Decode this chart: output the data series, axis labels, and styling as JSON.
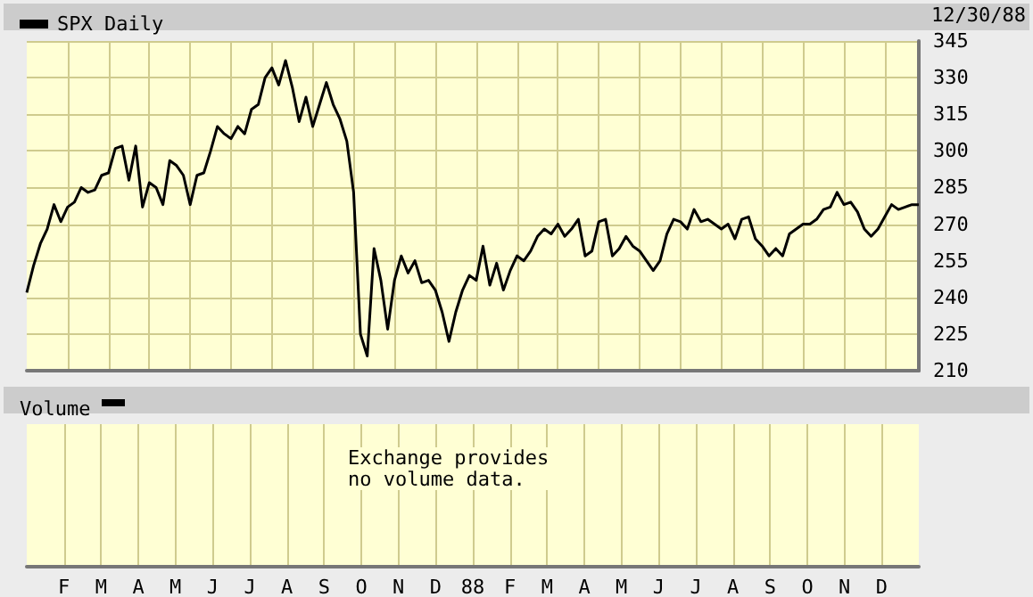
{
  "chart_data": [
    {
      "type": "line",
      "legend": "top left",
      "annotations": [
        "12/30/88"
      ],
      "grid": true,
      "tick_labels": "y",
      "line_style": "solid",
      "series": [
        {
          "name": "SPX Daily",
          "color": "#000000",
          "values": [
            242,
            253,
            262,
            268,
            278,
            271,
            277,
            279,
            285,
            283,
            284,
            290,
            291,
            301,
            302,
            288,
            302,
            277,
            287,
            285,
            278,
            296,
            294,
            290,
            278,
            290,
            291,
            300,
            310,
            307,
            305,
            310,
            307,
            317,
            319,
            330,
            334,
            327,
            337,
            326,
            312,
            322,
            310,
            319,
            328,
            319,
            313,
            304,
            283,
            225,
            216,
            260,
            247,
            227,
            247,
            257,
            250,
            255,
            246,
            247,
            243,
            234,
            222,
            234,
            243,
            249,
            247,
            261,
            245,
            254,
            243,
            251,
            257,
            255,
            259,
            265,
            268,
            266,
            270,
            265,
            268,
            272,
            257,
            259,
            271,
            272,
            257,
            260,
            265,
            261,
            259,
            255,
            251,
            255,
            266,
            272,
            271,
            268,
            276,
            271,
            272,
            270,
            268,
            270,
            264,
            272,
            273,
            264,
            261,
            257,
            260,
            257,
            266,
            268,
            270,
            270,
            272,
            276,
            277,
            283,
            278,
            279,
            275,
            268,
            265,
            268,
            273,
            278,
            276,
            277,
            278,
            278
          ]
        }
      ],
      "categories": [
        null,
        null,
        null,
        null,
        null,
        null,
        null,
        null,
        null,
        null,
        null,
        null,
        null,
        null,
        null,
        null,
        null,
        null,
        null,
        null,
        null,
        null,
        null,
        null,
        null,
        null,
        null,
        null,
        null,
        null,
        null,
        null,
        null,
        null,
        null,
        null,
        null,
        null,
        null,
        null,
        null,
        null,
        null,
        null,
        null,
        null,
        null,
        null,
        null,
        null,
        null,
        null,
        null,
        null,
        null,
        null,
        null,
        null,
        null,
        null,
        null,
        null,
        null,
        null,
        null,
        null,
        null,
        null,
        null,
        null,
        null,
        null,
        null,
        null,
        null,
        null,
        null,
        null,
        null,
        null,
        null,
        null,
        null,
        null,
        null,
        null,
        null,
        null,
        null,
        null,
        null,
        null,
        null,
        null,
        null,
        null,
        null,
        null,
        null,
        null,
        null,
        null,
        null,
        null,
        null,
        null,
        null,
        null,
        null,
        null,
        null,
        null,
        null,
        null,
        null,
        null,
        null,
        null,
        null,
        null,
        null,
        null,
        null,
        null,
        null,
        null,
        null,
        null,
        null,
        null,
        null,
        null
      ],
      "ylim": [
        210,
        345
      ],
      "yticks": [
        210,
        225,
        240,
        255,
        270,
        285,
        300,
        315,
        330,
        345
      ]
    },
    {
      "type": "other",
      "title": "Volume",
      "annotations": [
        "Exchange provides no volume data."
      ],
      "categories": [
        null,
        "F",
        "M",
        "A",
        "M",
        "J",
        "J",
        "A",
        "S",
        "O",
        "N",
        "D",
        "88",
        "F",
        "M",
        "A",
        "M",
        "J",
        "J",
        "A",
        "S",
        "O",
        "N",
        "D",
        null
      ]
    }
  ]
}
